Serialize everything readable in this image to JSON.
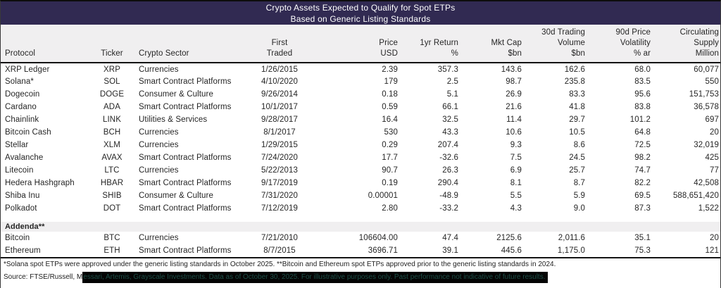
{
  "chart_data": {
    "type": "table",
    "title": "Crypto Assets Expected to Qualify for Spot ETPs",
    "subtitle": "Based on Generic Listing Standards",
    "columns": [
      {
        "id": "protocol",
        "label_lines": [
          "Protocol"
        ],
        "align": "left"
      },
      {
        "id": "ticker",
        "label_lines": [
          "Ticker"
        ],
        "align": "center"
      },
      {
        "id": "sector",
        "label_lines": [
          "Crypto Sector"
        ],
        "align": "left"
      },
      {
        "id": "first-traded",
        "label_lines": [
          "First",
          "Traded"
        ],
        "align": "center"
      },
      {
        "id": "price-usd",
        "label_lines": [
          "Price",
          "USD"
        ],
        "align": "right"
      },
      {
        "id": "return-1yr",
        "label_lines": [
          "1yr Return",
          "%"
        ],
        "align": "right"
      },
      {
        "id": "mkt-cap",
        "label_lines": [
          "Mkt Cap",
          "$bn"
        ],
        "align": "right"
      },
      {
        "id": "volume-30d",
        "label_lines": [
          "30d Trading",
          "Volume",
          "$bn"
        ],
        "align": "right"
      },
      {
        "id": "volatility-90d",
        "label_lines": [
          "90d Price",
          "Volatility",
          "% ar"
        ],
        "align": "right"
      },
      {
        "id": "supply",
        "label_lines": [
          "Circulating",
          "Supply",
          "Million"
        ],
        "align": "right"
      }
    ],
    "rows": [
      [
        "XRP Ledger",
        "XRP",
        "Currencies",
        "1/26/2015",
        "2.39",
        "357.3",
        "143.6",
        "162.6",
        "68.0",
        "60,077"
      ],
      [
        "Solana*",
        "SOL",
        "Smart Contract Platforms",
        "4/10/2020",
        "179",
        "2.5",
        "98.7",
        "235.8",
        "83.5",
        "550"
      ],
      [
        "Dogecoin",
        "DOGE",
        "Consumer & Culture",
        "9/26/2014",
        "0.18",
        "5.1",
        "26.9",
        "83.3",
        "95.6",
        "151,753"
      ],
      [
        "Cardano",
        "ADA",
        "Smart Contract Platforms",
        "10/1/2017",
        "0.59",
        "66.1",
        "21.6",
        "41.8",
        "83.8",
        "36,578"
      ],
      [
        "Chainlink",
        "LINK",
        "Utilities & Services",
        "9/28/2017",
        "16.4",
        "32.5",
        "11.4",
        "29.7",
        "101.2",
        "697"
      ],
      [
        "Bitcoin Cash",
        "BCH",
        "Currencies",
        "8/1/2017",
        "530",
        "43.3",
        "10.6",
        "10.5",
        "64.8",
        "20"
      ],
      [
        "Stellar",
        "XLM",
        "Currencies",
        "1/29/2015",
        "0.29",
        "207.4",
        "9.3",
        "8.6",
        "72.5",
        "32,019"
      ],
      [
        "Avalanche",
        "AVAX",
        "Smart Contract Platforms",
        "7/24/2020",
        "17.7",
        "-32.6",
        "7.5",
        "24.5",
        "98.2",
        "425"
      ],
      [
        "Litecoin",
        "LTC",
        "Currencies",
        "5/22/2013",
        "90.7",
        "26.3",
        "6.9",
        "25.7",
        "74.7",
        "77"
      ],
      [
        "Hedera Hashgraph",
        "HBAR",
        "Smart Contract Platforms",
        "9/17/2019",
        "0.19",
        "290.4",
        "8.1",
        "8.7",
        "82.2",
        "42,508"
      ],
      [
        "Shiba Inu",
        "SHIB",
        "Consumer & Culture",
        "7/31/2020",
        "0.00001",
        "-48.9",
        "5.5",
        "5.9",
        "69.5",
        "588,651,420"
      ],
      [
        "Polkadot",
        "DOT",
        "Smart Contract Platforms",
        "7/12/2019",
        "2.80",
        "-33.2",
        "4.3",
        "9.0",
        "87.3",
        "1,522"
      ]
    ],
    "addenda_label": "Addenda**",
    "addenda_rows": [
      [
        "Bitcoin",
        "BTC",
        "Currencies",
        "7/21/2010",
        "106604.00",
        "47.4",
        "2125.6",
        "2,011.6",
        "35.1",
        "20"
      ],
      [
        "Ethereum",
        "ETH",
        "Smart Contract Platforms",
        "8/7/2015",
        "3696.71",
        "39.1",
        "445.6",
        "1,175.0",
        "75.3",
        "121"
      ]
    ]
  },
  "footnotes": {
    "line1": "*Solana spot ETPs were approved under the generic listing standards in October 2025. **Bitcoin and Ethereum spot ETPs approved prior to the generic listing standards in 2024.",
    "line2_prefix": "Source: FTSE/Russell, M",
    "line2_highlight": "essari, Artemis, Grayscale Investments. Data as of October 30, 2025. For illustrative purposes only. Past performance not indicative of future results."
  },
  "colors": {
    "title_bg": "#312a52",
    "title_text": "#ffffff",
    "header_bg": "#f0eff0",
    "rule": "#141414",
    "body_text": "#262626",
    "highlight_bg": "#040404",
    "highlight_text": "#1d4f47"
  }
}
